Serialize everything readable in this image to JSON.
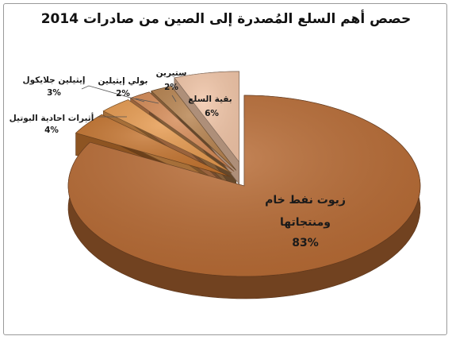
{
  "chart_data": {
    "type": "pie",
    "title": "حصص أهم السلع المُصدرة إلى الصين من صادرات 2014",
    "slices": [
      {
        "label": "زيوت نفط خام ومنتجاتها",
        "value": 83,
        "value_label": "83%",
        "color": "#b76a33"
      },
      {
        "label": "أثيرات احادية البوتيل",
        "value": 4,
        "value_label": "4%",
        "color": "#c4742f"
      },
      {
        "label": "إيثيلين جلايكول",
        "value": 3,
        "value_label": "3%",
        "color": "#e69a4f"
      },
      {
        "label": "بولي إيثيلين",
        "value": 2,
        "value_label": "2%",
        "color": "#d58a55"
      },
      {
        "label": "ستيرين",
        "value": 2,
        "value_label": "2%",
        "color": "#b7834f"
      },
      {
        "label": "بقية السلع",
        "value": 6,
        "value_label": "6%",
        "color": "#f2c6a8"
      }
    ],
    "style": "3d-exploded",
    "legend": "none"
  }
}
